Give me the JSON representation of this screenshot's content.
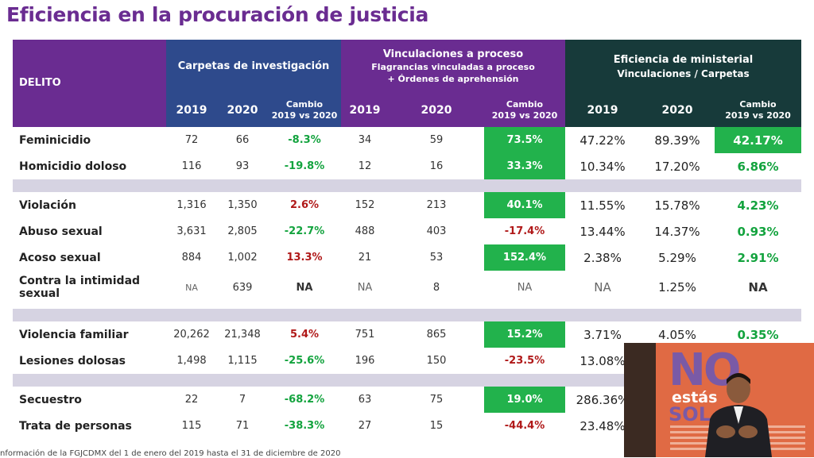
{
  "title": "Eficiencia en la procuración de justicia",
  "header": {
    "delito": "DELITO",
    "group1": "Carpetas de investigación",
    "group2_l1": "Vinculaciones a proceso",
    "group2_l2": "Flagrancias vinculadas a proceso",
    "group2_l3": "+ Órdenes de aprehensión",
    "group3_l1": "Eficiencia de ministerial",
    "group3_l2": "Vinculaciones / Carpetas",
    "y2019": "2019",
    "y2020": "2020",
    "chg_l1": "Cambio",
    "chg_l2": "2019 vs 2020"
  },
  "rows": {
    "feminicidio": {
      "name": "Feminicidio",
      "c19": "72",
      "c20": "66",
      "cc": "-8.3%",
      "v19": "34",
      "v20": "59",
      "vc": "73.5%",
      "e19": "47.22%",
      "e20": "89.39%",
      "ec": "42.17%"
    },
    "homicidio": {
      "name": "Homicidio doloso",
      "c19": "116",
      "c20": "93",
      "cc": "-19.8%",
      "v19": "12",
      "v20": "16",
      "vc": "33.3%",
      "e19": "10.34%",
      "e20": "17.20%",
      "ec": "6.86%"
    },
    "violacion": {
      "name": "Violación",
      "c19": "1,316",
      "c20": "1,350",
      "cc": "2.6%",
      "v19": "152",
      "v20": "213",
      "vc": "40.1%",
      "e19": "11.55%",
      "e20": "15.78%",
      "ec": "4.23%"
    },
    "abuso": {
      "name": "Abuso sexual",
      "c19": "3,631",
      "c20": "2,805",
      "cc": "-22.7%",
      "v19": "488",
      "v20": "403",
      "vc": "-17.4%",
      "e19": "13.44%",
      "e20": "14.37%",
      "ec": "0.93%"
    },
    "acoso": {
      "name": "Acoso sexual",
      "c19": "884",
      "c20": "1,002",
      "cc": "13.3%",
      "v19": "21",
      "v20": "53",
      "vc": "152.4%",
      "e19": "2.38%",
      "e20": "5.29%",
      "ec": "2.91%"
    },
    "intimidad": {
      "name_l1": "Contra la intimidad",
      "name_l2": "sexual",
      "c19": "NA",
      "c20": "639",
      "cc": "NA",
      "v19": "NA",
      "v20": "8",
      "vc": "NA",
      "e19": "NA",
      "e20": "1.25%",
      "ec": "NA"
    },
    "violencia": {
      "name": "Violencia familiar",
      "c19": "20,262",
      "c20": "21,348",
      "cc": "5.4%",
      "v19": "751",
      "v20": "865",
      "vc": "15.2%",
      "e19": "3.71%",
      "e20": "4.05%",
      "ec": "0.35%"
    },
    "lesiones": {
      "name": "Lesiones dolosas",
      "c19": "1,498",
      "c20": "1,115",
      "cc": "-25.6%",
      "v19": "196",
      "v20": "150",
      "vc": "-23.5%",
      "e19": "13.08%"
    },
    "secuestro": {
      "name": "Secuestro",
      "c19": "22",
      "c20": "7",
      "cc": "-68.2%",
      "v19": "63",
      "v20": "75",
      "vc": "19.0%",
      "e19": "286.36%"
    },
    "trata": {
      "name": "Trata de personas",
      "c19": "115",
      "c20": "71",
      "cc": "-38.3%",
      "v19": "27",
      "v20": "15",
      "vc": "-44.4%",
      "e19": "23.48%"
    }
  },
  "video": {
    "no": "NO",
    "estas": "estás",
    "sola": "SOL"
  },
  "footnote": "nformación de la FGJCDMX del 1 de enero del 2019 hasta el 31 de diciembre  de 2020",
  "colors": {
    "purple": "#6a2c91",
    "blue": "#2e4a8c",
    "dark_teal": "#173a3a",
    "green_cell": "#22b24c",
    "positive": "#13a33e",
    "negative": "#b01919",
    "separator": "#d6d3e2"
  }
}
